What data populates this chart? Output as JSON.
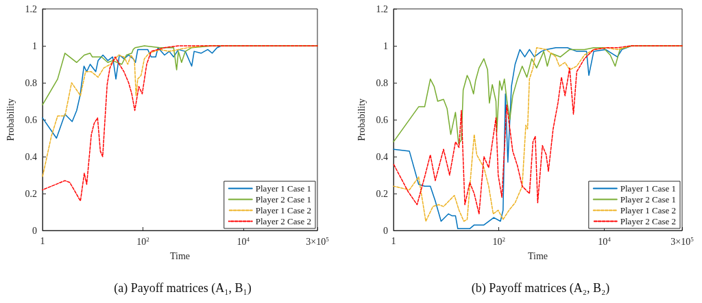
{
  "chart_data": [
    {
      "type": "line",
      "title": "(a) Payoff matrices (A₁, B₁)",
      "xlabel": "Time",
      "ylabel": "Probability",
      "log": "x",
      "xlim": [
        1,
        300000
      ],
      "xticks": [
        1,
        {
          "value": 100,
          "label": "10$^{2}$"
        },
        {
          "value": 10000,
          "label": "10$^{4}$"
        },
        {
          "value": 300000,
          "label": "3×10$^{5}$"
        }
      ],
      "ylim": [
        0,
        1.2
      ],
      "yticks": [
        0,
        0.2,
        0.4,
        0.6,
        0.8,
        1,
        1.2
      ],
      "grid": false,
      "legend": "bottom right",
      "marker": "none",
      "series": [
        {
          "name": "Player 1 Case 1",
          "color": "#0072bd",
          "line_style": "solid",
          "x": [
            1,
            1.9,
            2.8,
            3.9,
            4.8,
            5.6,
            6.7,
            7.6,
            8.9,
            11.5,
            12.8,
            16,
            20,
            25,
            29,
            34,
            42,
            52,
            64,
            71,
            79,
            97,
            125,
            146,
            180,
            200,
            270,
            335,
            410,
            510,
            700,
            940,
            1050,
            1440,
            1960,
            2400,
            3000,
            3650,
            300000
          ],
          "values": [
            0.61,
            0.5,
            0.63,
            0.59,
            0.65,
            0.73,
            0.89,
            0.86,
            0.9,
            0.86,
            0.92,
            0.95,
            0.92,
            0.94,
            0.82,
            0.95,
            0.93,
            0.95,
            0.93,
            0.91,
            0.98,
            0.98,
            0.98,
            0.94,
            0.94,
            0.99,
            0.95,
            0.97,
            0.94,
            0.98,
            0.97,
            0.89,
            0.97,
            0.96,
            0.98,
            0.96,
            0.99,
            1,
            1
          ]
        },
        {
          "name": "Player 2 Case 1",
          "color": "#77ac30",
          "line_style": "solid",
          "x": [
            1,
            2,
            2.8,
            4.8,
            6.8,
            8.9,
            9.8,
            15,
            20,
            25,
            38,
            47,
            60,
            64,
            70,
            107,
            220,
            410,
            470,
            510,
            590,
            700,
            940,
            2400,
            300000
          ],
          "values": [
            0.68,
            0.82,
            0.96,
            0.91,
            0.95,
            0.96,
            0.94,
            0.94,
            0.91,
            0.92,
            0.9,
            0.95,
            0.96,
            0.98,
            0.99,
            1,
            0.99,
            0.99,
            0.87,
            0.97,
            0.91,
            0.97,
            0.99,
            1,
            1
          ]
        },
        {
          "name": "Player 1 Case 2",
          "color": "#edb120",
          "line_style": "dashed",
          "x": [
            1,
            1.5,
            2,
            2.8,
            3.8,
            4.8,
            5.7,
            7.2,
            9.4,
            12.8,
            16.6,
            22.6,
            32.6,
            42,
            50,
            58,
            68,
            73,
            79,
            92,
            107,
            133,
            220,
            335,
            510,
            780,
            1800,
            300000
          ],
          "values": [
            0.29,
            0.51,
            0.62,
            0.62,
            0.8,
            0.76,
            0.73,
            0.86,
            0.86,
            0.83,
            0.88,
            0.9,
            0.95,
            0.94,
            0.9,
            0.95,
            0.92,
            0.73,
            0.82,
            0.84,
            0.93,
            0.96,
            0.98,
            0.97,
            0.98,
            0.99,
            1,
            1
          ]
        },
        {
          "name": "Player 2 Case 2",
          "color": "#ff0000",
          "line_style": "dashed",
          "x": [
            1,
            2.8,
            3.5,
            5.7,
            6.8,
            7.6,
            9.4,
            10.7,
            12.5,
            14.2,
            15.8,
            19.4,
            22,
            28,
            34,
            42,
            52,
            60,
            69,
            83,
            97,
            119,
            146,
            200,
            270,
            510,
            1440,
            300000
          ],
          "values": [
            0.22,
            0.27,
            0.26,
            0.16,
            0.31,
            0.25,
            0.52,
            0.58,
            0.61,
            0.43,
            0.4,
            0.79,
            0.88,
            0.94,
            0.9,
            0.86,
            0.8,
            0.74,
            0.65,
            0.78,
            0.74,
            0.9,
            0.97,
            0.98,
            0.99,
            1,
            1,
            1
          ]
        }
      ]
    },
    {
      "type": "line",
      "title": "(b) Payoff matrices (A₂, B₂)",
      "xlabel": "Time",
      "ylabel": "Probability",
      "log": "x",
      "xlim": [
        1,
        300000
      ],
      "xticks": [
        1,
        {
          "value": 100,
          "label": "10$^{2}$"
        },
        {
          "value": 10000,
          "label": "10$^{4}$"
        },
        {
          "value": 300000,
          "label": "3×10$^{5}$"
        }
      ],
      "ylim": [
        0,
        1.2
      ],
      "yticks": [
        0,
        0.2,
        0.4,
        0.6,
        0.8,
        1,
        1.2
      ],
      "grid": false,
      "legend": "bottom right",
      "marker": "none",
      "series": [
        {
          "name": "Player 1 Case 1",
          "color": "#0072bd",
          "line_style": "solid",
          "x": [
            1,
            2,
            3,
            3.9,
            5,
            6.2,
            8,
            11,
            12.8,
            15,
            16.6,
            28,
            34,
            52,
            80,
            107,
            120,
            133,
            148,
            173,
            203,
            250,
            310,
            380,
            470,
            640,
            790,
            1200,
            2000,
            3000,
            4600,
            5100,
            6300,
            10600,
            17700,
            21700,
            33000,
            300000
          ],
          "values": [
            0.44,
            0.43,
            0.25,
            0.24,
            0.24,
            0.16,
            0.05,
            0.09,
            0.08,
            0.08,
            0.01,
            0.01,
            0.03,
            0.03,
            0.07,
            0.05,
            0.11,
            0.74,
            0.37,
            0.78,
            0.9,
            0.98,
            0.94,
            0.98,
            0.94,
            0.97,
            0.98,
            0.99,
            0.99,
            0.97,
            0.97,
            0.84,
            0.97,
            0.98,
            0.94,
            0.98,
            1,
            1
          ]
        },
        {
          "name": "Player 2 Case 1",
          "color": "#77ac30",
          "line_style": "solid",
          "x": [
            1,
            3,
            3.9,
            5,
            5.9,
            6.9,
            8.9,
            10.4,
            12.2,
            15,
            17.2,
            19.4,
            21,
            25,
            28,
            33,
            36,
            42,
            52,
            61,
            66,
            75,
            88,
            91,
            103,
            114,
            127,
            141,
            161,
            183,
            225,
            277,
            340,
            420,
            520,
            710,
            830,
            970,
            1470,
            2200,
            4200,
            6300,
            9600,
            13000,
            16100,
            19800,
            33000,
            300000
          ],
          "values": [
            0.48,
            0.67,
            0.67,
            0.82,
            0.78,
            0.7,
            0.71,
            0.66,
            0.52,
            0.64,
            0.47,
            0.49,
            0.76,
            0.84,
            0.81,
            0.74,
            0.81,
            0.88,
            0.93,
            0.87,
            0.69,
            0.79,
            0.7,
            0.53,
            0.81,
            0.76,
            0.82,
            0.71,
            0.6,
            0.73,
            0.82,
            0.89,
            0.83,
            0.93,
            0.88,
            0.97,
            0.89,
            0.96,
            0.94,
            0.98,
            0.98,
            0.99,
            0.99,
            0.95,
            0.89,
            0.98,
            1,
            1
          ]
        },
        {
          "name": "Player 1 Case 2",
          "color": "#edb120",
          "line_style": "dashed",
          "x": [
            1,
            2,
            3,
            4.1,
            5.6,
            7.2,
            8.9,
            14.3,
            17.5,
            21.6,
            25,
            29.5,
            34,
            38,
            52,
            64,
            78,
            97,
            120,
            156,
            203,
            277,
            324,
            350,
            380,
            443,
            520,
            790,
            1200,
            1400,
            1800,
            2200,
            3000,
            4200,
            6300,
            10600,
            17700,
            33000,
            300000
          ],
          "values": [
            0.24,
            0.22,
            0.29,
            0.05,
            0.13,
            0.14,
            0.13,
            0.19,
            0.11,
            0.05,
            0.06,
            0.31,
            0.52,
            0.41,
            0.34,
            0.24,
            0.09,
            0.11,
            0.06,
            0.11,
            0.15,
            0.24,
            0.57,
            0.55,
            0.82,
            0.88,
            0.99,
            0.98,
            0.94,
            0.89,
            0.91,
            0.87,
            0.89,
            0.95,
            0.98,
            0.99,
            0.98,
            1,
            1
          ]
        },
        {
          "name": "Player 2 Case 2",
          "color": "#ff0000",
          "line_style": "dashed",
          "x": [
            1,
            1.9,
            2.8,
            3.9,
            5,
            6.2,
            8.9,
            11.6,
            15,
            17.5,
            19.4,
            22.6,
            28,
            34,
            42,
            52,
            64,
            88,
            97,
            114,
            141,
            183,
            225,
            277,
            380,
            443,
            490,
            545,
            670,
            790,
            870,
            1070,
            1320,
            1540,
            1800,
            2200,
            2600,
            3000,
            4200,
            6300,
            11500,
            17700,
            33000,
            300000
          ],
          "values": [
            0.36,
            0.21,
            0.14,
            0.29,
            0.41,
            0.27,
            0.44,
            0.3,
            0.48,
            0.45,
            0.65,
            0.14,
            0.26,
            0.2,
            0.09,
            0.4,
            0.34,
            0.61,
            0.3,
            0.18,
            0.68,
            0.43,
            0.35,
            0.24,
            0.2,
            0.48,
            0.51,
            0.15,
            0.46,
            0.41,
            0.32,
            0.55,
            0.69,
            0.83,
            0.73,
            0.88,
            0.63,
            0.86,
            0.93,
            0.98,
            0.99,
            0.99,
            1,
            1
          ]
        }
      ]
    }
  ]
}
